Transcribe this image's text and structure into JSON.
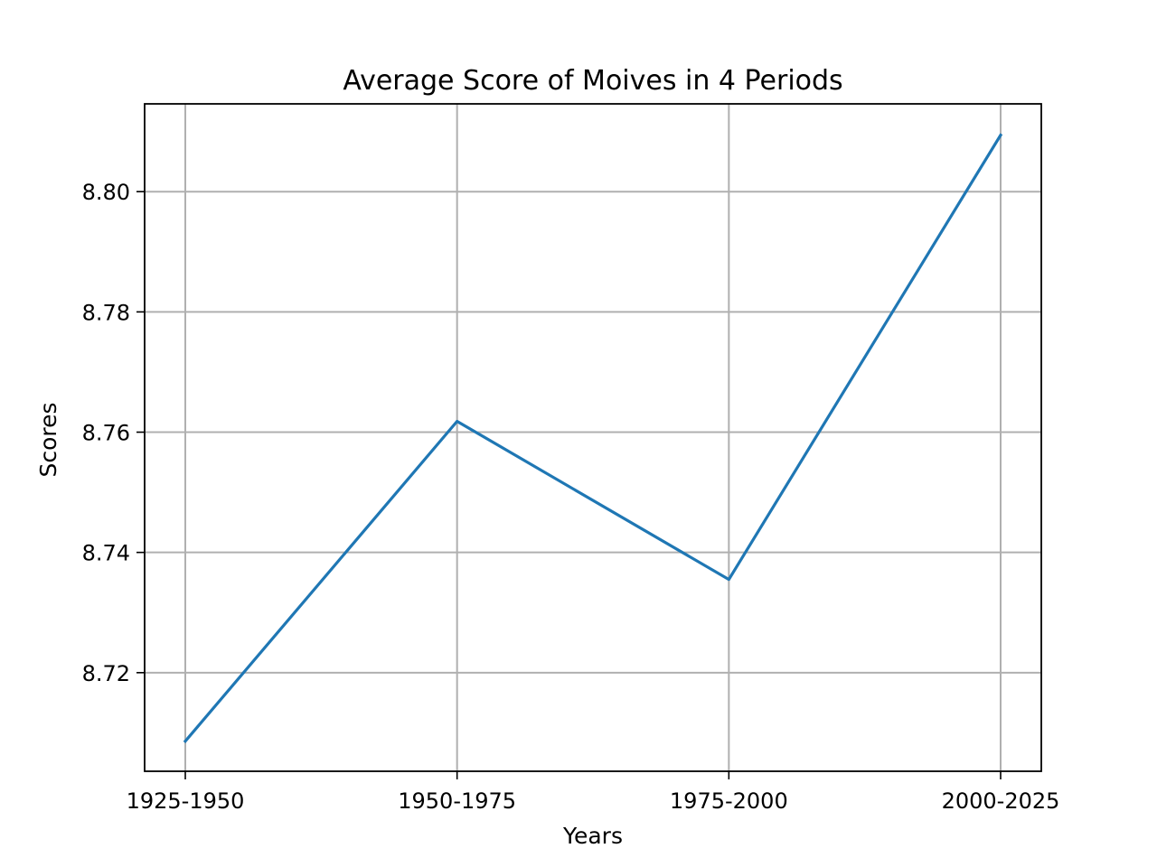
{
  "chart_data": {
    "type": "line",
    "title": "Average Score of Moives in 4 Periods",
    "xlabel": "Years",
    "ylabel": "Scores",
    "categories": [
      "1925-1950",
      "1950-1975",
      "1975-2000",
      "2000-2025"
    ],
    "series": [
      {
        "values": [
          8.7086,
          8.7618,
          8.7355,
          8.8094
        ],
        "color": "#1f77b4"
      }
    ],
    "ylim": [
      8.7036,
      8.8146
    ],
    "yticks": [
      8.72,
      8.74,
      8.76,
      8.78,
      8.8
    ],
    "ytick_labels": [
      "8.72",
      "8.74",
      "8.76",
      "8.78",
      "8.80"
    ],
    "grid": true,
    "legend": "none"
  }
}
